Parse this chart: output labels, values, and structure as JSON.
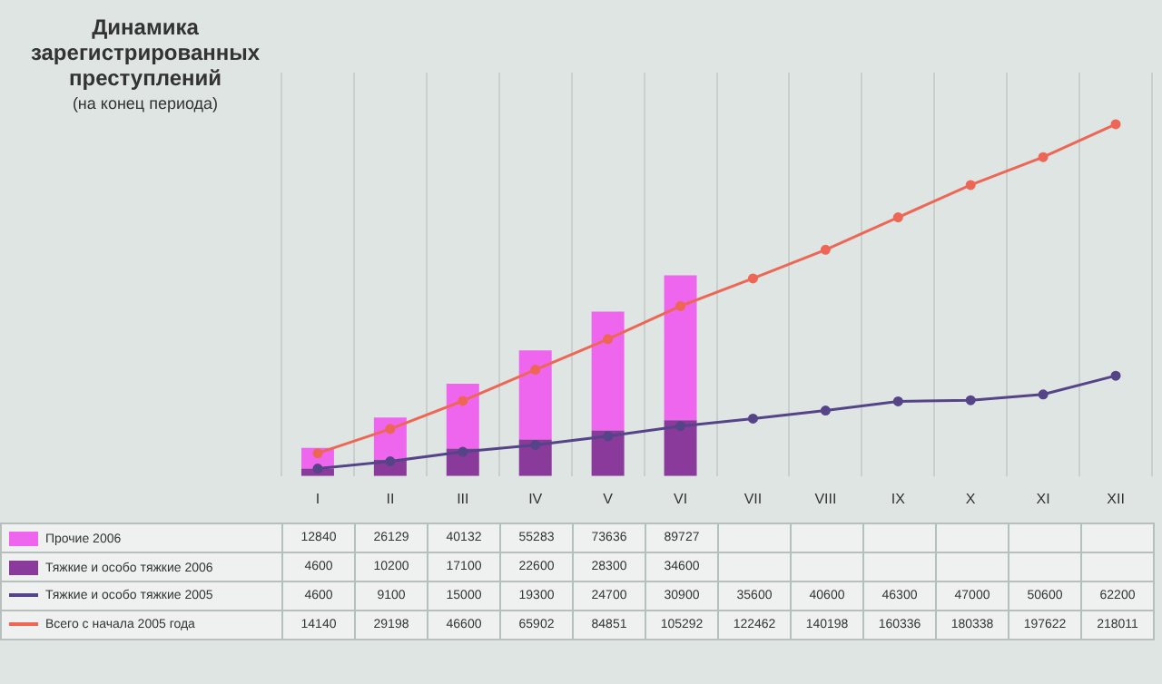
{
  "chart_data": {
    "type": "bar",
    "title": "Динамика зарегистрированных преступлений",
    "subtitle": "(на конец периода)",
    "categories": [
      "I",
      "II",
      "III",
      "IV",
      "V",
      "VI",
      "VII",
      "VIII",
      "IX",
      "X",
      "XI",
      "XII"
    ],
    "stacked": true,
    "data_labels": true,
    "legend": "bottom",
    "grid": "x",
    "marker": "circle",
    "series": [
      {
        "name": "Тяжкие и особо тяжкие 2006",
        "color": "#8a3a9a",
        "values": [
          4600,
          10200,
          17100,
          22600,
          28300,
          34600,
          null,
          null,
          null,
          null,
          null,
          null
        ]
      },
      {
        "name": "Прочие 2006",
        "color": "#ee66ee",
        "values": [
          12840,
          26129,
          40132,
          55283,
          73636,
          89727,
          null,
          null,
          null,
          null,
          null,
          null
        ]
      },
      {
        "name": "Тяжкие и особо тяжкие 2005",
        "type": "line",
        "color": "#554488",
        "values": [
          4600,
          9100,
          15000,
          19300,
          24700,
          30900,
          35600,
          40600,
          46300,
          47000,
          50600,
          62200
        ]
      },
      {
        "name": "Всего с начала 2005 года",
        "type": "line",
        "color": "#ee6655",
        "values": [
          14140,
          29198,
          46600,
          65902,
          84851,
          105292,
          122462,
          140198,
          160336,
          180338,
          197622,
          218011
        ]
      }
    ]
  }
}
